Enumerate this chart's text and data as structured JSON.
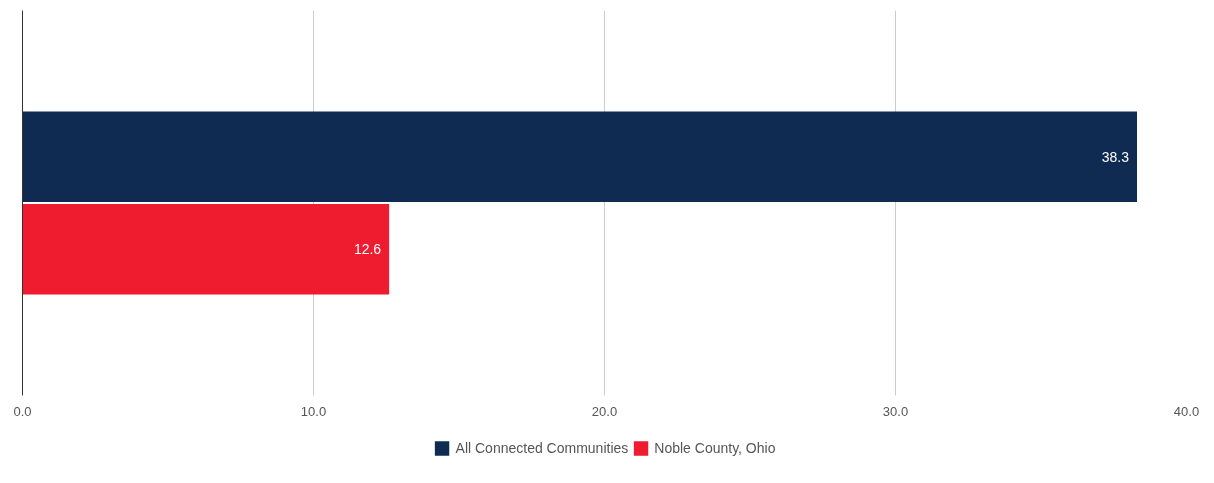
{
  "chart_data": {
    "type": "bar",
    "orientation": "horizontal",
    "categories": [
      null
    ],
    "series": [
      {
        "name": "All Connected Communities",
        "color": "#0f2b52",
        "values": [
          38.3
        ]
      },
      {
        "name": "Noble County, Ohio",
        "color": "#ee1c2e",
        "values": [
          12.6
        ]
      }
    ],
    "xlim": [
      0,
      40
    ],
    "xticks": [
      {
        "value": 0,
        "label": "0.0"
      },
      {
        "value": 10,
        "label": "10.0"
      },
      {
        "value": 20,
        "label": "20.0"
      },
      {
        "value": 30,
        "label": "30.0"
      },
      {
        "value": 40,
        "label": "40.0"
      }
    ],
    "grid": "x",
    "legend": "bottom",
    "data_labels": true,
    "tick_labels": "x"
  }
}
